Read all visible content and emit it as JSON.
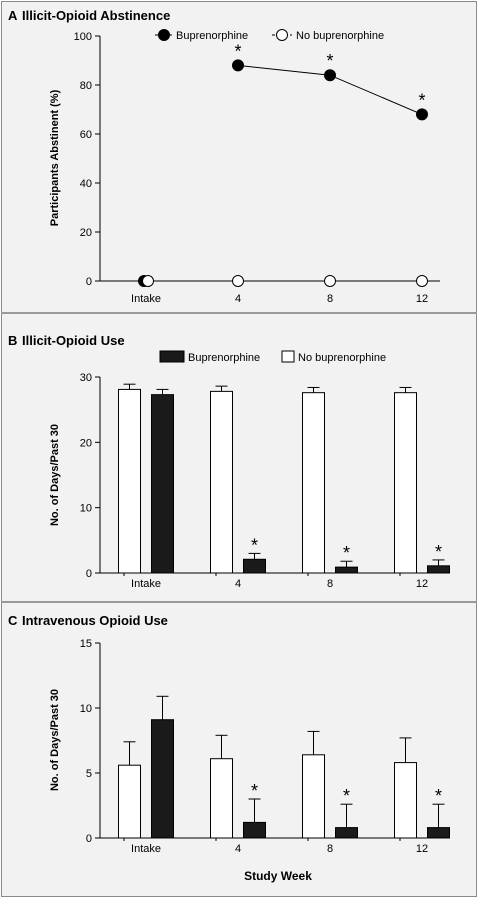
{
  "chart_data": [
    {
      "type": "line",
      "panel": "A",
      "title": "Illicit-Opioid Abstinence",
      "ylabel": "Participants Abstinent (%)",
      "categories": [
        "Intake",
        "4",
        "8",
        "12"
      ],
      "yticks": [
        0,
        20,
        40,
        60,
        80,
        100
      ],
      "ylim": [
        0,
        100
      ],
      "series": [
        {
          "name": "Buprenorphine",
          "values": [
            0,
            88,
            84,
            68
          ],
          "marker": "filled-circle",
          "line": "solid"
        },
        {
          "name": "No buprenorphine",
          "values": [
            0,
            0,
            0,
            0
          ],
          "marker": "open-circle",
          "line": "dashed"
        }
      ],
      "annotations": [
        "*",
        "*",
        "*"
      ],
      "legend": "top-right"
    },
    {
      "type": "bar",
      "panel": "B",
      "title": "Illicit-Opioid Use",
      "ylabel": "No. of Days/Past 30",
      "categories": [
        "Intake",
        "4",
        "8",
        "12"
      ],
      "yticks": [
        0,
        10,
        20,
        30
      ],
      "ylim": [
        0,
        30
      ],
      "series": [
        {
          "name": "Buprenorphine",
          "values": [
            27.3,
            2.1,
            0.9,
            1.1
          ],
          "errors": [
            0.8,
            0.9,
            0.9,
            0.9
          ],
          "fill": "#1a1a1a"
        },
        {
          "name": "No buprenorphine",
          "values": [
            28.1,
            27.8,
            27.6,
            27.6
          ],
          "errors": [
            0.8,
            0.8,
            0.8,
            0.8
          ],
          "fill": "#ffffff"
        }
      ],
      "annotations": [
        "*",
        "*",
        "*"
      ],
      "legend": "top"
    },
    {
      "type": "bar",
      "panel": "C",
      "title": "Intravenous Opioid Use",
      "ylabel": "No. of Days/Past 30",
      "xlabel": "Study Week",
      "categories": [
        "Intake",
        "4",
        "8",
        "12"
      ],
      "yticks": [
        0,
        5,
        10,
        15
      ],
      "ylim": [
        0,
        15
      ],
      "series": [
        {
          "name": "Buprenorphine",
          "values": [
            9.1,
            1.2,
            0.8,
            0.8
          ],
          "errors": [
            1.8,
            1.8,
            1.8,
            1.8
          ],
          "fill": "#1a1a1a"
        },
        {
          "name": "No buprenorphine",
          "values": [
            5.6,
            6.1,
            6.4,
            5.8
          ],
          "errors": [
            1.8,
            1.8,
            1.8,
            1.9
          ],
          "fill": "#ffffff"
        }
      ],
      "annotations": [
        "*",
        "*",
        "*"
      ]
    }
  ],
  "panel_letters": [
    "A",
    "B",
    "C"
  ]
}
